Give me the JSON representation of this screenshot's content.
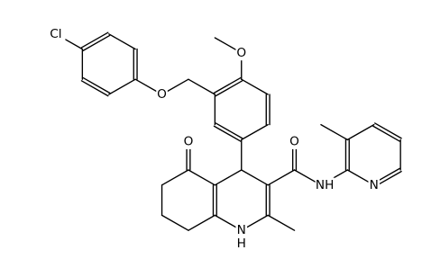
{
  "atoms": [
    {
      "label": "Cl"
    },
    {
      "label": "O"
    },
    {
      "label": "O"
    },
    {
      "label": "O"
    },
    {
      "label": "O"
    },
    {
      "label": "NH"
    },
    {
      "label": "N"
    },
    {
      "label": "N"
    },
    {
      "label": "H"
    }
  ]
}
